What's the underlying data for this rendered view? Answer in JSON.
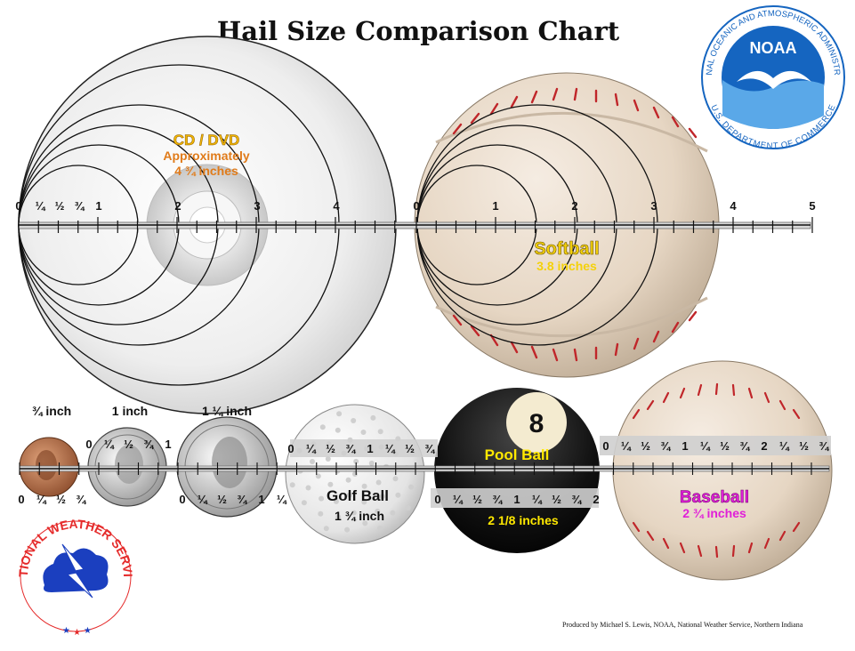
{
  "title": "Hail Size Comparison Chart",
  "credit": "Produced by Michael S. Lewis, NOAA, National Weather Service, Northern Indiana",
  "noaa_logo": {
    "ring_text": "NATIONAL OCEANIC AND ATMOSPHERIC ADMINISTRATION",
    "ring_bottom": "U.S. DEPARTMENT OF COMMERCE",
    "center_text": "NOAA",
    "icon": "noaa-seagull-icon"
  },
  "nws_logo": {
    "ring_text": "NATIONAL WEATHER SERVICE",
    "icon": "lightning-cloud-icon"
  },
  "cd": {
    "label": "CD / DVD",
    "line1": "Approximately",
    "line2": "4 ¾ inches"
  },
  "softball": {
    "label": "Softball",
    "size": "3.8 inches"
  },
  "ruler_top": {
    "labels_left": [
      "0",
      "¼",
      "½",
      "¾",
      "1",
      "2",
      "3",
      "4"
    ],
    "labels_right": [
      "0",
      "1",
      "2",
      "3",
      "4",
      "5"
    ]
  },
  "small_items": {
    "penny": "¾ inch",
    "quarter": "1 inch",
    "half_dollar": "1 ¼ inch",
    "penny_scale": [
      "0",
      "¼",
      "½",
      "¾"
    ],
    "quarter_scale_top": [
      "0",
      "¼",
      "½",
      "¾",
      "1"
    ],
    "half_scale": [
      "0",
      "¼",
      "½",
      "¾",
      "1",
      "¼"
    ]
  },
  "golf_ball": {
    "label": "Golf Ball",
    "size": "1 ¾ inch",
    "scale": [
      "0",
      "¼",
      "½",
      "¾",
      "1",
      "¼",
      "½",
      "¾"
    ]
  },
  "pool_ball": {
    "label": "Pool Ball",
    "size": "2 1/8 inches",
    "ball_number": "8",
    "scale": [
      "0",
      "¼",
      "½",
      "¾",
      "1",
      "¼",
      "½",
      "¾",
      "2"
    ]
  },
  "baseball": {
    "label": "Baseball",
    "size": "2 ¾ inches",
    "scale": [
      "0",
      "¼",
      "½",
      "¾",
      "1",
      "¼",
      "½",
      "¾",
      "2",
      "¼",
      "½",
      "¾"
    ]
  },
  "colors": {
    "cd_label": "#f2b705",
    "cd_sub": "#e07b1a",
    "softball_label": "#f4d10a",
    "baseball_label": "#e01fd8",
    "pool_label": "#ffe800",
    "noaa_blue": "#1565c0",
    "seam_red": "#c0262a"
  }
}
